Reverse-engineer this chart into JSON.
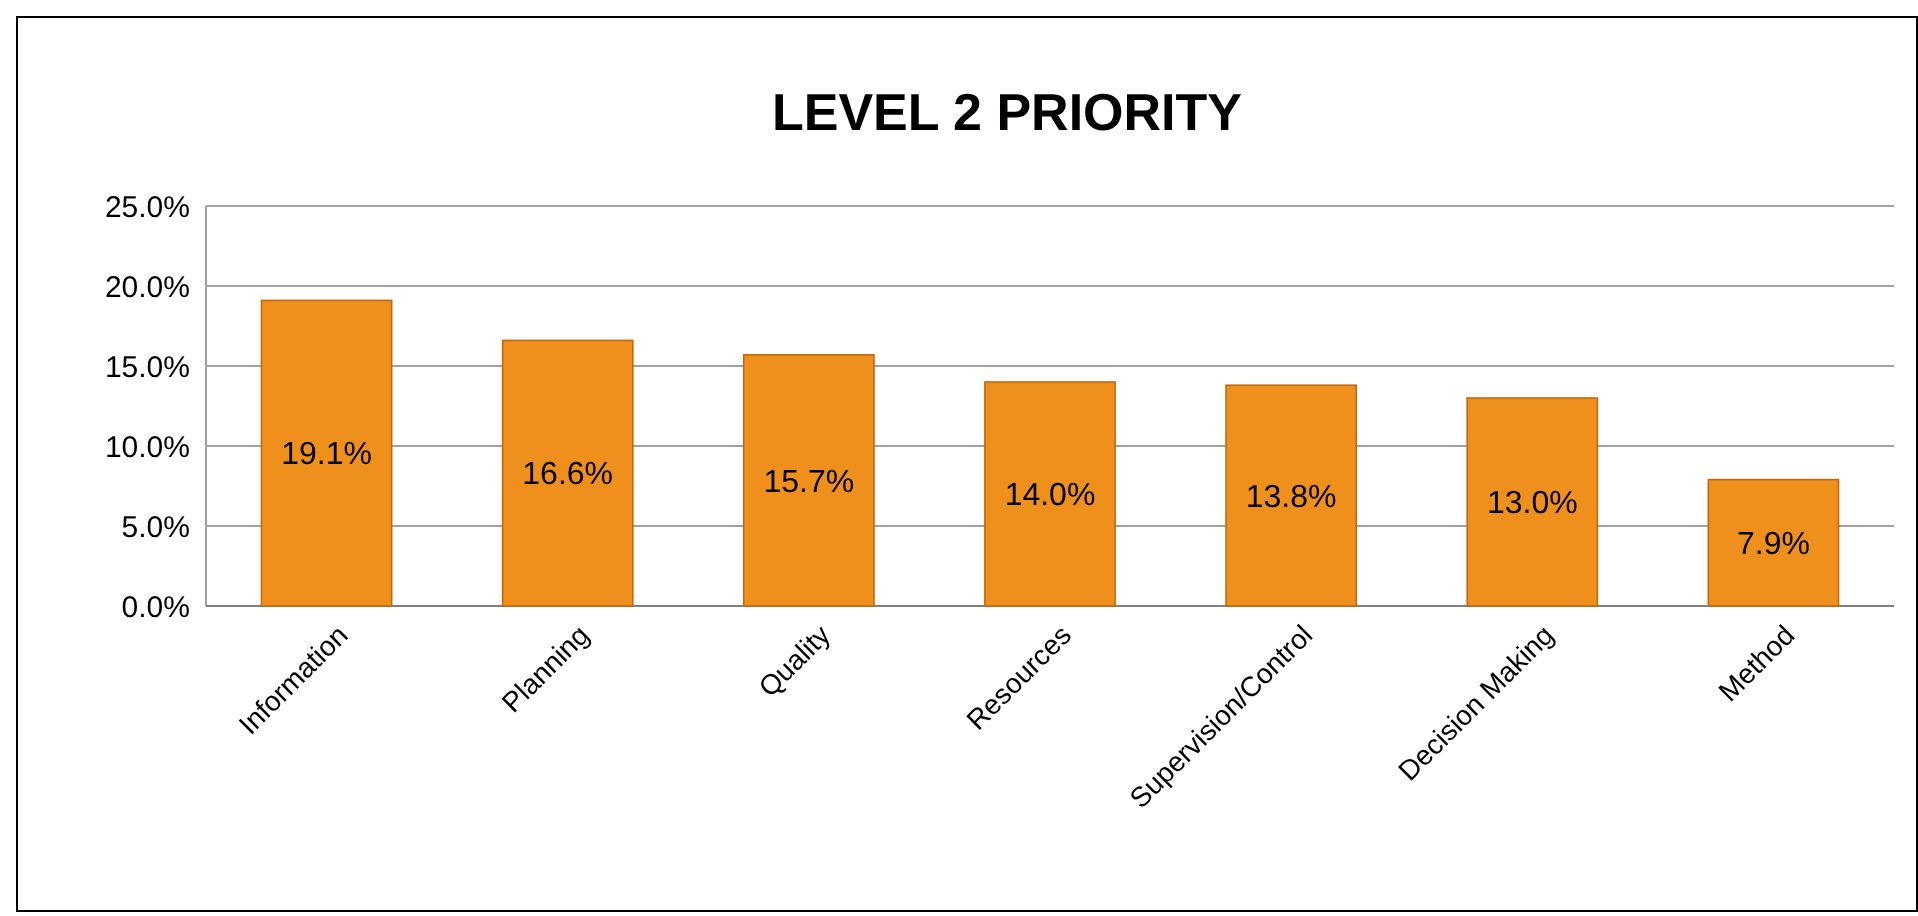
{
  "chart_data": {
    "type": "bar",
    "title": "LEVEL 2 PRIORITY",
    "categories": [
      "Information",
      "Planning",
      "Quality",
      "Resources",
      "Supervision/Control",
      "Decision Making",
      "Method"
    ],
    "values": [
      19.1,
      16.6,
      15.7,
      14.0,
      13.8,
      13.0,
      7.9
    ],
    "value_labels": [
      "19.1%",
      "16.6%",
      "15.7%",
      "14.0%",
      "13.8%",
      "13.0%",
      "7.9%"
    ],
    "color": "#f0901c",
    "ylim": [
      0,
      25
    ],
    "yticks": [
      {
        "value": 0,
        "label": "0.0%"
      },
      {
        "value": 5,
        "label": "5.0%"
      },
      {
        "value": 10,
        "label": "10.0%"
      },
      {
        "value": 15,
        "label": "15.0%"
      },
      {
        "value": 20,
        "label": "20.0%"
      },
      {
        "value": 25,
        "label": "25.0%"
      }
    ],
    "grid": "y"
  }
}
